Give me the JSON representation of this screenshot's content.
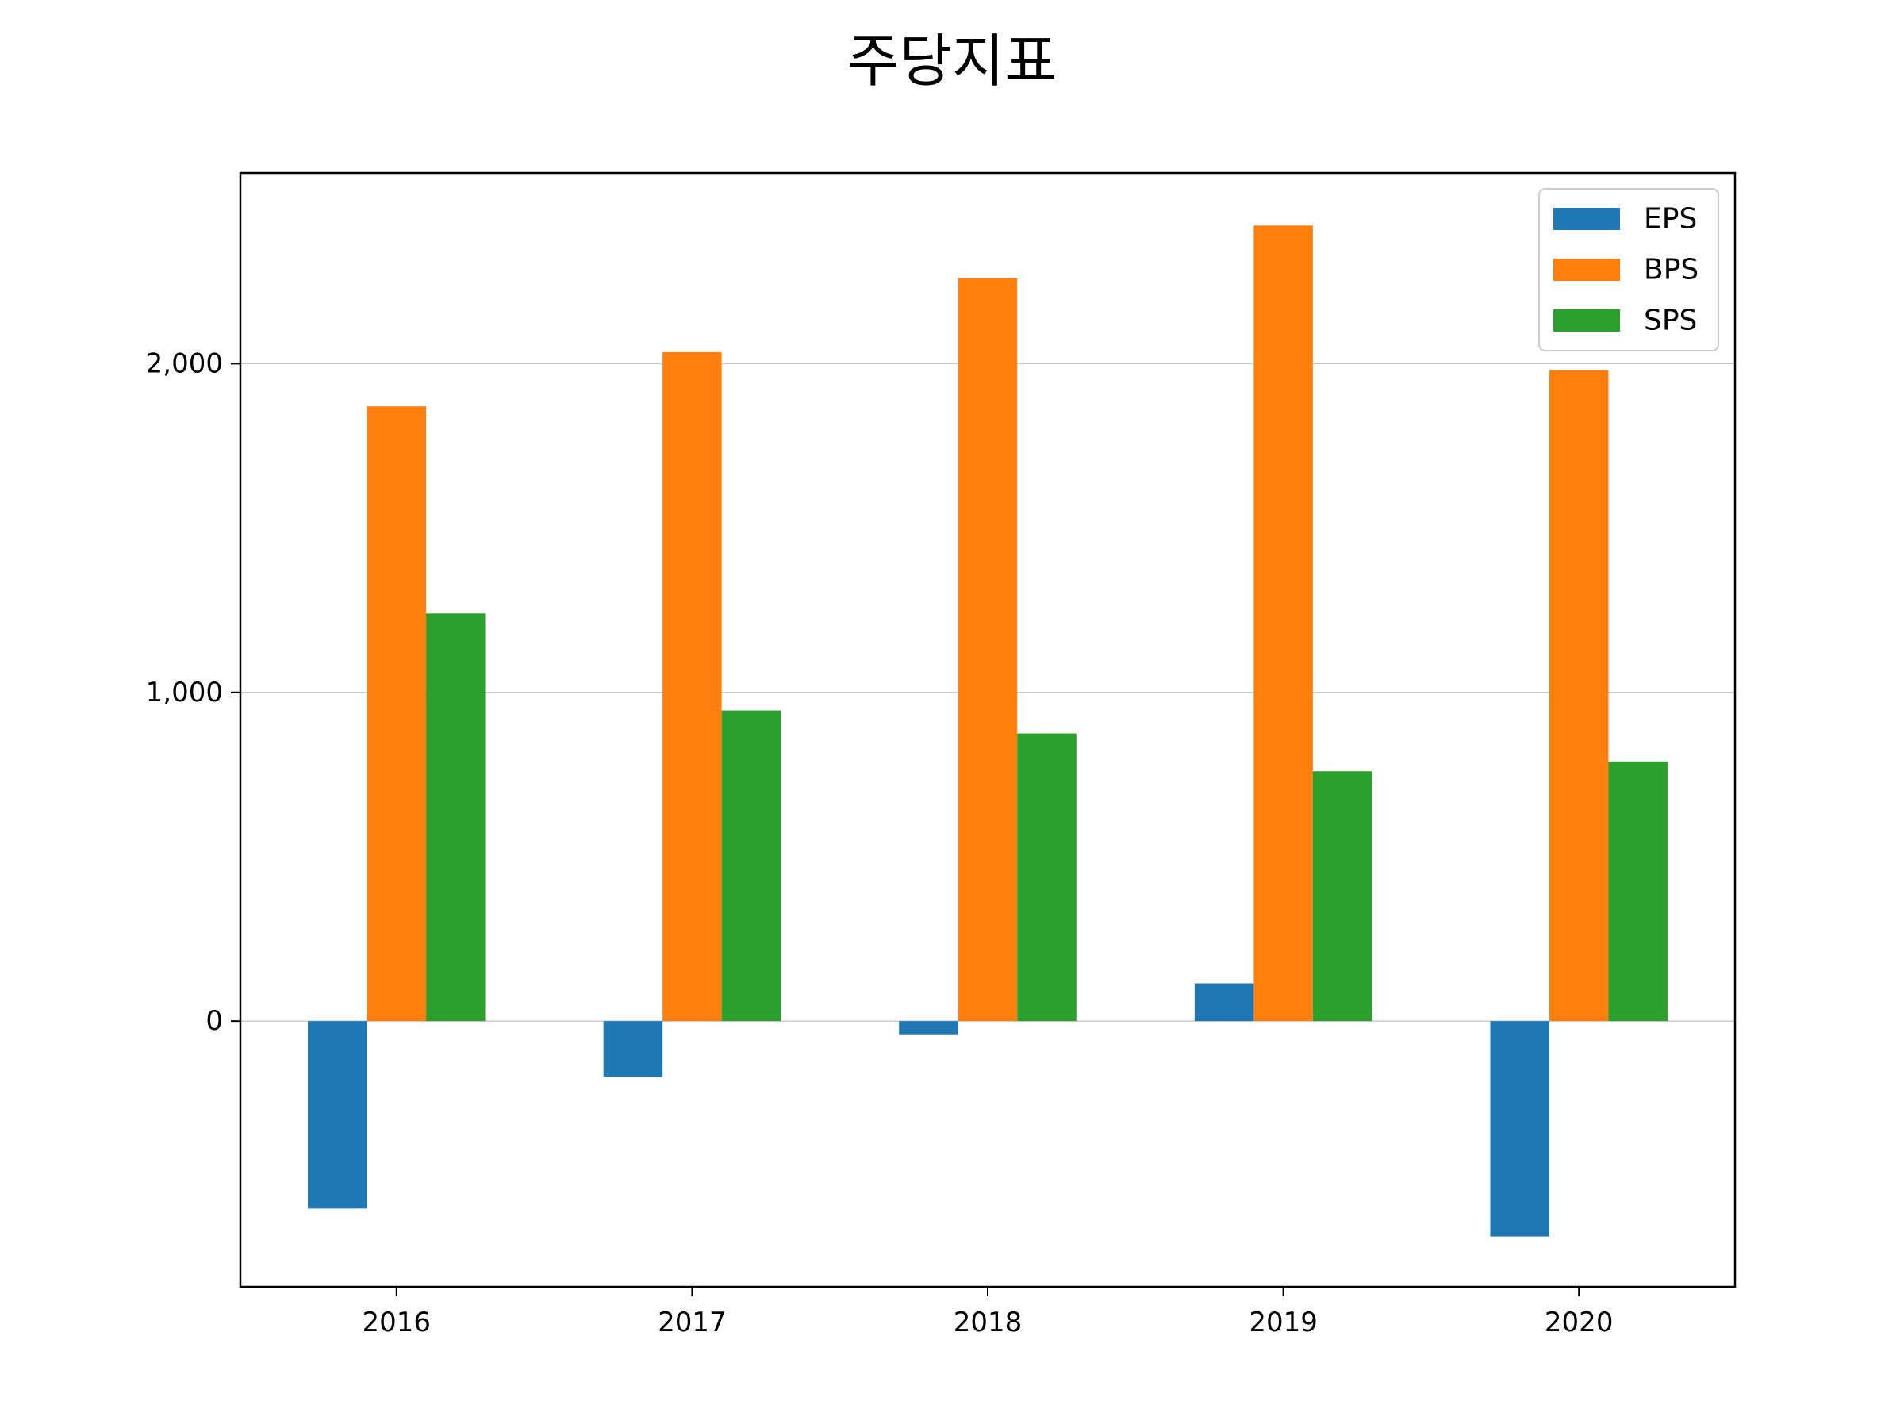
{
  "chart_data": {
    "type": "bar",
    "title": "주당지표",
    "xlabel": "",
    "ylabel": "",
    "categories": [
      "2016",
      "2017",
      "2018",
      "2019",
      "2020"
    ],
    "series": [
      {
        "name": "EPS",
        "color": "#1f77b4",
        "values": [
          -570,
          -170,
          -40,
          115,
          -655
        ]
      },
      {
        "name": "BPS",
        "color": "#ff7f0e",
        "values": [
          1870,
          2035,
          2260,
          2420,
          1980
        ]
      },
      {
        "name": "SPS",
        "color": "#2ca02c",
        "values": [
          1240,
          945,
          875,
          760,
          790
        ]
      }
    ],
    "ylim": [
      -808,
      2580
    ],
    "yticks": [
      0,
      1000,
      2000
    ],
    "ytick_labels": [
      "0",
      "1,000",
      "2,000"
    ],
    "grid": "horizontal",
    "legend_position": "top-right"
  }
}
